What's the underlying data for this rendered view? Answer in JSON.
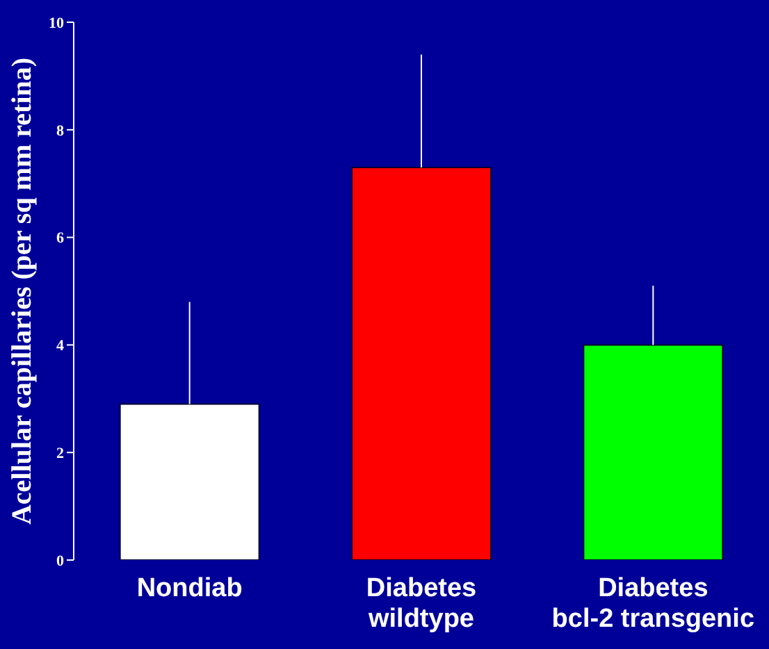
{
  "chart_data": {
    "type": "bar",
    "ylabel": "Acellular capillaries (per sq mm retina)",
    "categories": [
      "Nondiab",
      "Diabetes\nwildtype",
      "Diabetes\nbcl-2 transgenic"
    ],
    "values": [
      2.9,
      7.3,
      4.0
    ],
    "colors": [
      "#ffffff",
      "#ff0000",
      "#00ff00"
    ],
    "errors": [
      [
        2.9,
        4.8
      ],
      [
        7.3,
        9.4
      ],
      [
        4.0,
        5.1
      ]
    ],
    "ylim": [
      0,
      10
    ],
    "yticks": [
      0,
      2,
      4,
      6,
      8,
      10
    ],
    "grid": false,
    "legend": false
  }
}
